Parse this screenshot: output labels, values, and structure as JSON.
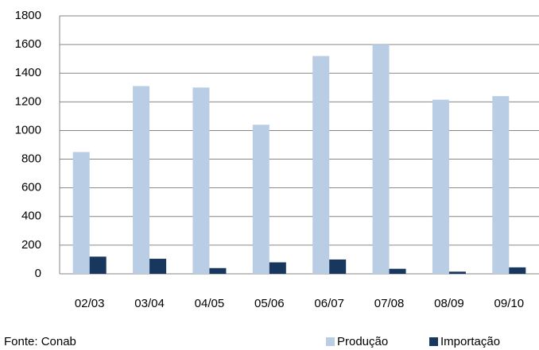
{
  "chart_data": {
    "type": "bar",
    "categories": [
      "02/03",
      "03/04",
      "04/05",
      "05/06",
      "06/07",
      "07/08",
      "08/09",
      "09/10"
    ],
    "series": [
      {
        "name": "Produção",
        "color": "#b9cde5",
        "values": [
          850,
          1310,
          1300,
          1040,
          1520,
          1600,
          1215,
          1240
        ]
      },
      {
        "name": "Importação",
        "color": "#17375e",
        "values": [
          120,
          105,
          40,
          80,
          100,
          35,
          15,
          45
        ]
      }
    ],
    "ylim": [
      0,
      1800
    ],
    "yticks": [
      0,
      200,
      400,
      600,
      800,
      1000,
      1200,
      1400,
      1600,
      1800
    ],
    "grid": true,
    "legend": "bottom-right",
    "source": "Fonte: Conab"
  }
}
